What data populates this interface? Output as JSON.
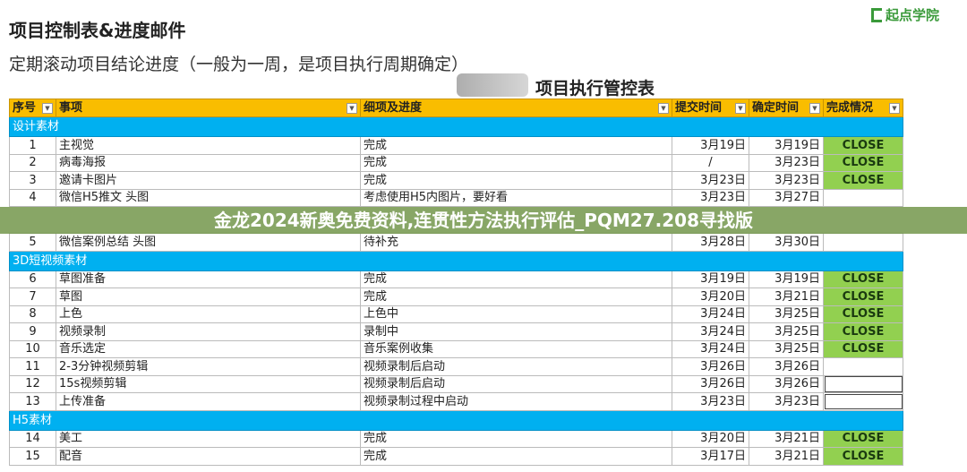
{
  "title": "项目控制表&进度邮件",
  "subtitle": "定期滚动项目结论进度（一般为一周，是项目执行周期确定）",
  "logo": "起点学院",
  "table_title": "项目执行管控表",
  "headers": [
    "序号",
    "事项",
    "细项及进度",
    "提交时间",
    "确定时间",
    "完成情况"
  ],
  "sections": [
    {
      "name": "设计素材",
      "rows": [
        [
          "1",
          "主视觉",
          "完成",
          "3月19日",
          "3月19日",
          "CLOSE"
        ],
        [
          "2",
          "病毒海报",
          "完成",
          "/",
          "3月23日",
          "CLOSE"
        ],
        [
          "3",
          "邀请卡图片",
          "完成",
          "3月23日",
          "3月23日",
          "CLOSE"
        ],
        [
          "4",
          "微信H5推文 头图",
          "考虑使用H5内图片，要好看",
          "3月23日",
          "3月27日",
          ""
        ],
        [
          "5",
          "微信案例总结 头图",
          "待补充",
          "3月28日",
          "3月30日",
          ""
        ]
      ]
    },
    {
      "name": "3D短视频素材",
      "rows": [
        [
          "6",
          "草图准备",
          "完成",
          "3月19日",
          "3月19日",
          "CLOSE"
        ],
        [
          "7",
          "草图",
          "完成",
          "3月20日",
          "3月21日",
          "CLOSE"
        ],
        [
          "8",
          "上色",
          "上色中",
          "3月24日",
          "3月25日",
          "CLOSE"
        ],
        [
          "9",
          "视频录制",
          "录制中",
          "3月24日",
          "3月25日",
          "CLOSE"
        ],
        [
          "10",
          "音乐选定",
          "音乐案例收集",
          "3月24日",
          "3月25日",
          "CLOSE"
        ],
        [
          "11",
          "2-3分钟视频剪辑",
          "视频录制后启动",
          "3月26日",
          "3月26日",
          ""
        ],
        [
          "12",
          "15s视频剪辑",
          "视频录制后启动",
          "3月26日",
          "3月26日",
          ""
        ],
        [
          "13",
          "上传准备",
          "视频录制过程中启动",
          "3月23日",
          "3月23日",
          ""
        ]
      ]
    },
    {
      "name": "H5素材",
      "rows": [
        [
          "14",
          "美工",
          "完成",
          "3月20日",
          "3月21日",
          "CLOSE"
        ],
        [
          "15",
          "配音",
          "完成",
          "3月17日",
          "3月21日",
          "CLOSE"
        ]
      ]
    }
  ],
  "banner": "金龙2024新奥免费资料,连贯性方法执行评估_PQM27.208寻找版",
  "colors": {
    "header": "#f9bd00",
    "section": "#00b0f0",
    "close": "#92d050",
    "banner": "#73964b"
  }
}
